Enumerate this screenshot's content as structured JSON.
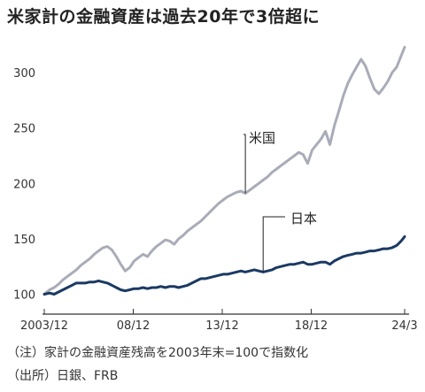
{
  "title": "米家計の金融資産は過去20年で3倍超に",
  "notes": {
    "note1": "（注）家計の金融資産残高を2003年末=100で指数化",
    "note2": "（出所）日銀、FRB"
  },
  "colors": {
    "us": "#a9acb8",
    "japan": "#1b3a63",
    "axis": "#333333",
    "tick": "#555555"
  },
  "chart_data": {
    "type": "line",
    "title": "米家計の金融資産は過去20年で3倍超に",
    "xlabel": "",
    "ylabel": "",
    "x_range": [
      2003.95,
      2024.25
    ],
    "ylim": [
      82,
      332
    ],
    "yticks": [
      100,
      150,
      200,
      250,
      300
    ],
    "xticks": [
      {
        "value": 2003.95,
        "label": "2003/12"
      },
      {
        "value": 2008.95,
        "label": "08/12"
      },
      {
        "value": 2013.95,
        "label": "13/12"
      },
      {
        "value": 2018.95,
        "label": "18/12"
      },
      {
        "value": 2024.2,
        "label": "24/3"
      }
    ],
    "grid": false,
    "series": [
      {
        "name": "米国",
        "x": [
          2003.95,
          2004.25,
          2004.5,
          2004.75,
          2005.0,
          2005.25,
          2005.5,
          2005.75,
          2006.0,
          2006.25,
          2006.5,
          2006.75,
          2007.0,
          2007.25,
          2007.5,
          2007.75,
          2008.0,
          2008.25,
          2008.5,
          2008.75,
          2009.0,
          2009.25,
          2009.5,
          2009.75,
          2010.0,
          2010.25,
          2010.5,
          2010.75,
          2011.0,
          2011.25,
          2011.5,
          2011.75,
          2012.0,
          2012.25,
          2012.5,
          2012.75,
          2013.0,
          2013.25,
          2013.5,
          2013.75,
          2014.0,
          2014.25,
          2014.5,
          2014.75,
          2015.0,
          2015.25,
          2015.5,
          2015.75,
          2016.0,
          2016.25,
          2016.5,
          2016.75,
          2017.0,
          2017.25,
          2017.5,
          2017.75,
          2018.0,
          2018.25,
          2018.5,
          2018.75,
          2019.0,
          2019.25,
          2019.5,
          2019.75,
          2020.0,
          2020.25,
          2020.5,
          2020.75,
          2021.0,
          2021.25,
          2021.5,
          2021.75,
          2022.0,
          2022.25,
          2022.5,
          2022.75,
          2023.0,
          2023.25,
          2023.5,
          2023.75,
          2024.0,
          2024.2
        ],
        "values": [
          100,
          104,
          106,
          109,
          113,
          116,
          119,
          122,
          126,
          129,
          132,
          136,
          139,
          142,
          143,
          140,
          134,
          127,
          121,
          124,
          130,
          133,
          136,
          134,
          139,
          143,
          146,
          149,
          148,
          145,
          150,
          153,
          157,
          160,
          163,
          166,
          170,
          174,
          178,
          182,
          185,
          188,
          190,
          192,
          193,
          191,
          194,
          197,
          200,
          203,
          206,
          210,
          213,
          216,
          219,
          222,
          225,
          228,
          226,
          218,
          230,
          235,
          240,
          247,
          235,
          252,
          265,
          279,
          290,
          298,
          305,
          312,
          306,
          295,
          285,
          281,
          286,
          292,
          300,
          305,
          315,
          323
        ]
      },
      {
        "name": "日本",
        "x": [
          2003.95,
          2004.25,
          2004.5,
          2004.75,
          2005.0,
          2005.25,
          2005.5,
          2005.75,
          2006.0,
          2006.25,
          2006.5,
          2006.75,
          2007.0,
          2007.25,
          2007.5,
          2007.75,
          2008.0,
          2008.25,
          2008.5,
          2008.75,
          2009.0,
          2009.25,
          2009.5,
          2009.75,
          2010.0,
          2010.25,
          2010.5,
          2010.75,
          2011.0,
          2011.25,
          2011.5,
          2011.75,
          2012.0,
          2012.25,
          2012.5,
          2012.75,
          2013.0,
          2013.25,
          2013.5,
          2013.75,
          2014.0,
          2014.25,
          2014.5,
          2014.75,
          2015.0,
          2015.25,
          2015.5,
          2015.75,
          2016.0,
          2016.25,
          2016.5,
          2016.75,
          2017.0,
          2017.25,
          2017.5,
          2017.75,
          2018.0,
          2018.25,
          2018.5,
          2018.75,
          2019.0,
          2019.25,
          2019.5,
          2019.75,
          2020.0,
          2020.25,
          2020.5,
          2020.75,
          2021.0,
          2021.25,
          2021.5,
          2021.75,
          2022.0,
          2022.25,
          2022.5,
          2022.75,
          2023.0,
          2023.25,
          2023.5,
          2023.75,
          2024.0,
          2024.2
        ],
        "values": [
          100,
          101,
          100,
          102,
          104,
          106,
          108,
          110,
          110,
          110,
          111,
          111,
          112,
          111,
          110,
          108,
          106,
          104,
          103,
          104,
          105,
          105,
          106,
          105,
          106,
          106,
          107,
          106,
          107,
          107,
          106,
          107,
          108,
          110,
          112,
          114,
          114,
          115,
          116,
          117,
          118,
          118,
          119,
          120,
          121,
          120,
          121,
          122,
          121,
          120,
          121,
          122,
          124,
          125,
          126,
          127,
          127,
          128,
          129,
          127,
          127,
          128,
          129,
          129,
          127,
          130,
          132,
          134,
          135,
          136,
          137,
          137,
          138,
          139,
          139,
          140,
          141,
          141,
          142,
          144,
          148,
          152
        ]
      }
    ],
    "annotations": [
      {
        "text": "米国",
        "series": "米国"
      },
      {
        "text": "日本",
        "series": "日本"
      }
    ]
  }
}
